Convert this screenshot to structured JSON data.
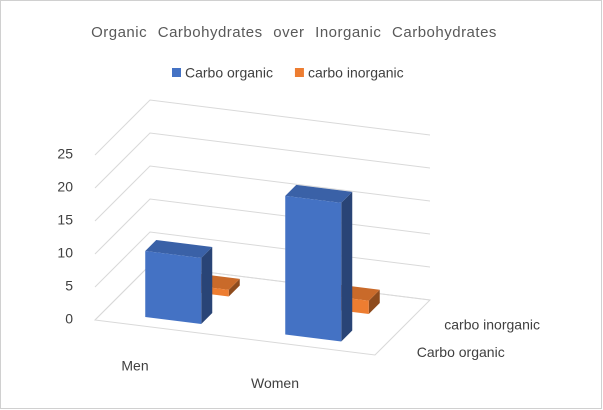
{
  "chart_data": {
    "type": "bar3d",
    "title": "Organic Carbohydrates over Inorganic Carbohydrates",
    "categories": [
      "Men",
      "Women"
    ],
    "series": [
      {
        "name": "Carbo organic",
        "color": "#4472c4",
        "values": [
          10,
          21
        ]
      },
      {
        "name": "carbo inorganic",
        "color": "#ed7d31",
        "values": [
          1,
          2
        ]
      }
    ],
    "ylim": [
      0,
      25
    ],
    "yticks": [
      0,
      5,
      10,
      15,
      20,
      25
    ],
    "grid": true,
    "legend": "top"
  }
}
